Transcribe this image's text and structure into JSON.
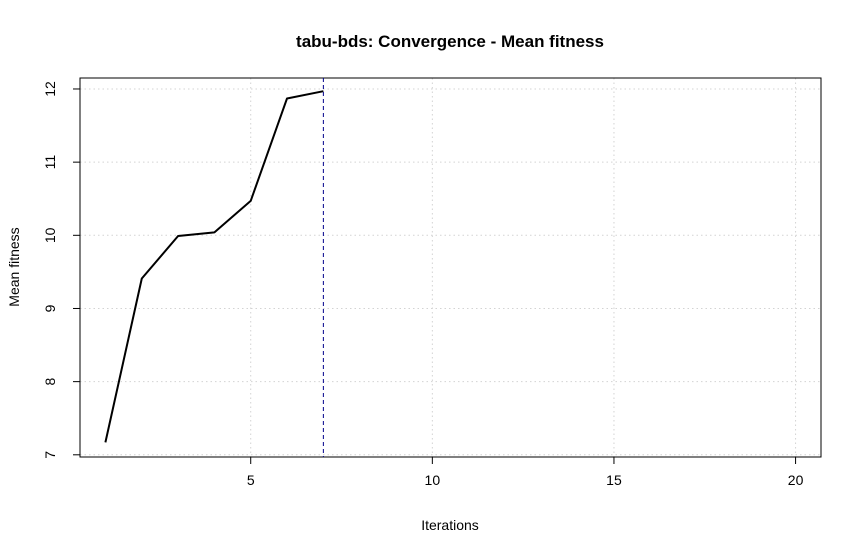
{
  "chart_data": {
    "type": "line",
    "title": "tabu-bds: Convergence - Mean fitness",
    "xlabel": "Iterations",
    "ylabel": "Mean fitness",
    "xlim": [
      0.3,
      20.7
    ],
    "ylim": [
      6.97,
      12.15
    ],
    "xticks": [
      5,
      10,
      15,
      20
    ],
    "yticks": [
      7,
      8,
      9,
      10,
      11,
      12
    ],
    "xtick_labels": [
      "5",
      "10",
      "15",
      "20"
    ],
    "ytick_labels": [
      "7",
      "8",
      "9",
      "10",
      "11",
      "12"
    ],
    "grid": true,
    "series": [
      {
        "x": [
          1,
          2,
          3,
          4,
          5,
          6,
          7
        ],
        "values": [
          7.17,
          9.41,
          9.99,
          10.04,
          10.47,
          11.87,
          11.97
        ],
        "color": "#000000",
        "style": "solid"
      }
    ],
    "vline": {
      "x": 7,
      "color": "#00008b",
      "style": "dashed"
    }
  }
}
